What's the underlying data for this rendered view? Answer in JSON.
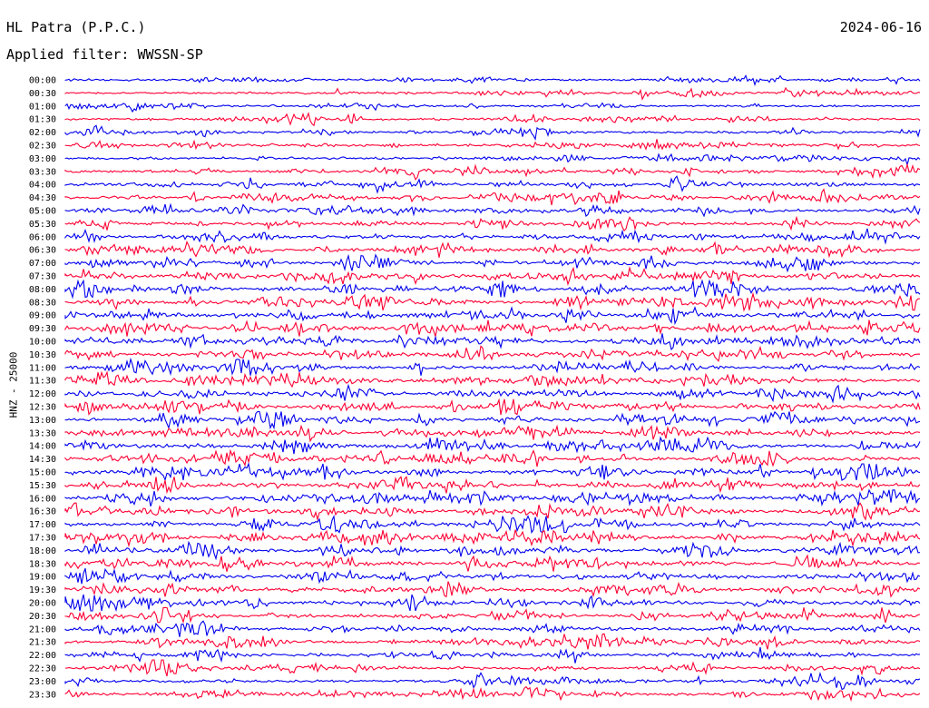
{
  "header": {
    "station": "HL Patra (P.P.C.)",
    "filter": "Applied filter: WWSSN-SP",
    "date": "2024-06-16",
    "channel": "HNZ - 25000"
  },
  "colors": {
    "even_row": "#0000ee",
    "odd_row": "#ff0033",
    "text": "#000000"
  },
  "chart_data": {
    "type": "line",
    "title": "HL Patra (P.P.C.)",
    "subtitle": "Applied filter: WWSSN-SP",
    "ylabel": "HNZ - 25000",
    "xlabel": "",
    "grid": false,
    "legend": "none",
    "row_labels": [
      "00:00",
      "00:30",
      "01:00",
      "01:30",
      "02:00",
      "02:30",
      "03:00",
      "03:30",
      "04:00",
      "04:30",
      "05:00",
      "05:30",
      "06:00",
      "06:30",
      "07:00",
      "07:30",
      "08:00",
      "08:30",
      "09:00",
      "09:30",
      "10:00",
      "10:30",
      "11:00",
      "11:30",
      "12:00",
      "12:30",
      "13:00",
      "13:30",
      "14:00",
      "14:30",
      "15:00",
      "15:30",
      "16:00",
      "16:30",
      "17:00",
      "17:30",
      "18:00",
      "18:30",
      "19:00",
      "19:30",
      "20:00",
      "20:30",
      "21:00",
      "21:30",
      "22:00",
      "22:30",
      "23:00",
      "23:30"
    ],
    "row_minutes": 30,
    "activity": [
      0.35,
      0.35,
      0.3,
      0.35,
      0.4,
      0.5,
      0.45,
      0.55,
      0.6,
      0.6,
      0.65,
      0.6,
      0.7,
      0.75,
      0.8,
      0.85,
      0.85,
      0.85,
      0.85,
      0.85,
      0.8,
      0.8,
      0.75,
      0.8,
      0.8,
      0.8,
      0.8,
      0.85,
      0.85,
      0.85,
      0.9,
      0.85,
      0.85,
      0.85,
      0.85,
      0.85,
      0.85,
      0.85,
      0.85,
      0.8,
      0.8,
      0.75,
      0.7,
      0.7,
      0.65,
      0.65,
      0.6,
      0.6
    ]
  }
}
